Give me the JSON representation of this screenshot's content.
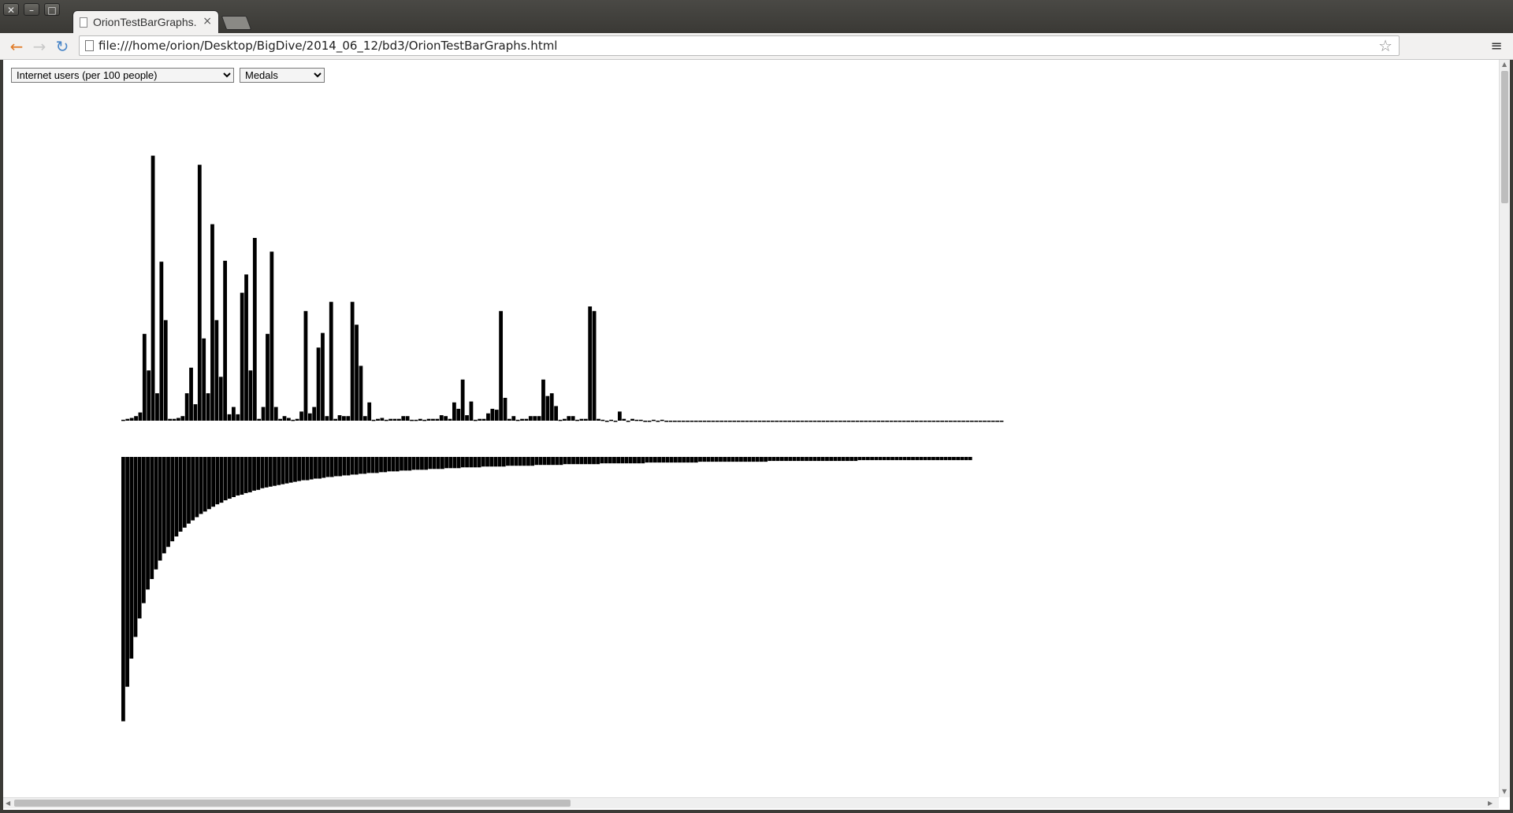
{
  "window": {
    "close": "✕",
    "minimize": "–",
    "maximize": "□"
  },
  "tab": {
    "title": "OrionTestBarGraphs.html",
    "close": "×"
  },
  "toolbar": {
    "back_icon": "arrow-left-icon",
    "forward_icon": "arrow-right-icon",
    "reload_icon": "reload-icon",
    "url": "file:///home/orion/Desktop/BigDive/2014_06_12/bd3/OrionTestBarGraphs.html",
    "star_icon": "star-icon",
    "menu_icon": "menu-icon"
  },
  "controls": {
    "indicator_select": "Internet users (per 100 people)",
    "metric_select": "Medals"
  },
  "chart_data": [
    {
      "type": "bar",
      "orientation": "up",
      "values": [
        1,
        2,
        3,
        5,
        9,
        95,
        55,
        290,
        30,
        174,
        110,
        2,
        2,
        3,
        5,
        30,
        58,
        18,
        280,
        90,
        30,
        215,
        110,
        48,
        175,
        7,
        15,
        7,
        140,
        160,
        55,
        200,
        2,
        15,
        95,
        185,
        15,
        2,
        5,
        3,
        1,
        2,
        10,
        120,
        8,
        15,
        80,
        96,
        5,
        130,
        2,
        6,
        5,
        5,
        130,
        105,
        60,
        5,
        20,
        1,
        2,
        3,
        1,
        2,
        2,
        2,
        5,
        5,
        1,
        1,
        2,
        1,
        2,
        2,
        2,
        6,
        5,
        2,
        20,
        13,
        45,
        6,
        21,
        1,
        2,
        2,
        8,
        13,
        12,
        120,
        25,
        2,
        5,
        1,
        2,
        2,
        5,
        5,
        5,
        45,
        27,
        30,
        16,
        1,
        2,
        5,
        5,
        1,
        2,
        2,
        125,
        120,
        2,
        1,
        0,
        1,
        0,
        10,
        2,
        0,
        2,
        1,
        1,
        0,
        0,
        1,
        0,
        1,
        0,
        0,
        0,
        0,
        0,
        0,
        0,
        0,
        0,
        0,
        0,
        0,
        0,
        0,
        0,
        0,
        0,
        0,
        0,
        0,
        0,
        0,
        0,
        0,
        0,
        0,
        0,
        0,
        0,
        0,
        0,
        0,
        0,
        0,
        0,
        0,
        0,
        0,
        0,
        0,
        0,
        0,
        0,
        0,
        0,
        0,
        0,
        0,
        0,
        0,
        0,
        0,
        0,
        0,
        0,
        0,
        0,
        0,
        0,
        0,
        0,
        0,
        0,
        0,
        0,
        0,
        0,
        0,
        0,
        0,
        0,
        0,
        0,
        0,
        0,
        0,
        0,
        0,
        0,
        0
      ]
    },
    {
      "type": "bar",
      "orientation": "down",
      "sorted": "descending",
      "values": []
    }
  ]
}
